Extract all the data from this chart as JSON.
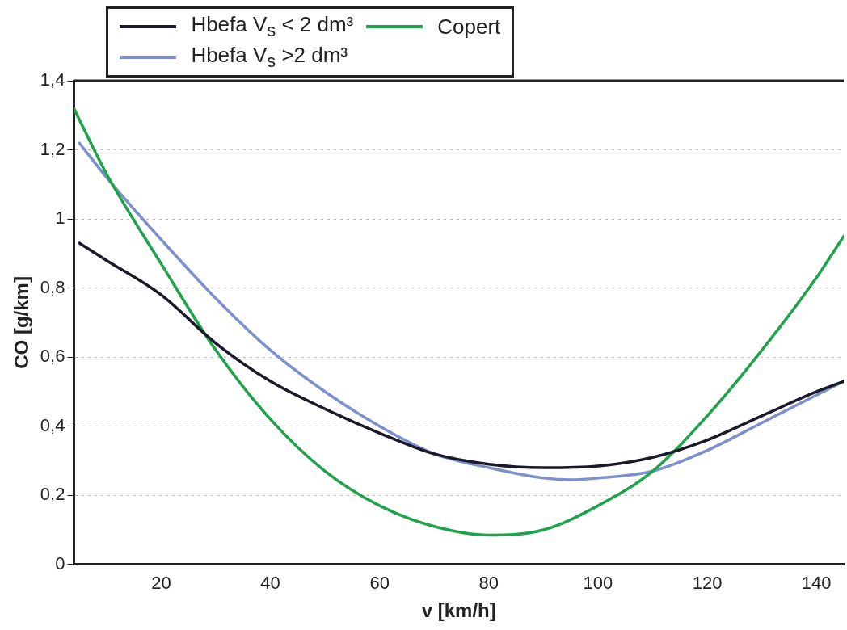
{
  "chart_data": {
    "type": "line",
    "xlabel": "v [km/h]",
    "ylabel": "CO [g/km]",
    "xlim": [
      4,
      145
    ],
    "xticks": [
      20,
      40,
      60,
      80,
      100,
      120,
      140
    ],
    "ylim": [
      0,
      1.4
    ],
    "yticks": [
      0,
      {
        "value": 0.2,
        "label": "0,2"
      },
      {
        "value": 0.4,
        "label": "0,4"
      },
      {
        "value": 0.6,
        "label": "0,6"
      },
      {
        "value": 0.8,
        "label": "0,8"
      },
      1,
      {
        "value": 1.2,
        "label": "1,2"
      },
      {
        "value": 1.4,
        "label": "1,4"
      }
    ],
    "grid": "y",
    "legend": "top left",
    "marker": "none",
    "line_style": "solid",
    "series": [
      {
        "name": "Hbefa  V$_{s}$ < 2 dm³",
        "color": "#1c1a2a",
        "x": [
          5,
          10,
          20,
          30,
          40,
          50,
          60,
          70,
          80,
          90,
          100,
          110,
          120,
          130,
          140,
          145
        ],
        "values": [
          0.93,
          0.88,
          0.78,
          0.64,
          0.53,
          0.45,
          0.38,
          0.32,
          0.29,
          0.28,
          0.285,
          0.31,
          0.36,
          0.43,
          0.5,
          0.53
        ]
      },
      {
        "name": "Copert",
        "color": "#1fa34a",
        "x": [
          4,
          10,
          20,
          30,
          40,
          50,
          60,
          70,
          80,
          90,
          100,
          110,
          120,
          130,
          140,
          145
        ],
        "values": [
          1.32,
          1.13,
          0.87,
          0.62,
          0.42,
          0.27,
          0.17,
          0.11,
          0.085,
          0.1,
          0.17,
          0.27,
          0.43,
          0.62,
          0.83,
          0.95
        ]
      },
      {
        "name": "Hbefa  V$_{s}$ >2 dm³",
        "color": "#7d8fcc",
        "x": [
          5,
          10,
          20,
          30,
          40,
          50,
          60,
          70,
          80,
          90,
          95,
          100,
          110,
          120,
          130,
          140,
          145
        ],
        "values": [
          1.22,
          1.12,
          0.94,
          0.77,
          0.62,
          0.5,
          0.4,
          0.32,
          0.28,
          0.25,
          0.245,
          0.25,
          0.27,
          0.33,
          0.41,
          0.49,
          0.53
        ]
      }
    ]
  }
}
